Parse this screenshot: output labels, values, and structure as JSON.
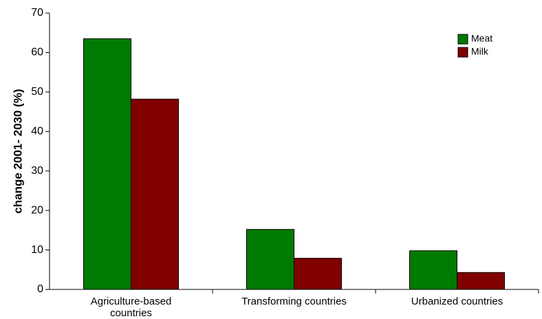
{
  "chart_data": {
    "type": "bar",
    "title": "",
    "xlabel": "",
    "ylabel": "change 2001- 2030 (%)",
    "ylim": [
      0,
      70
    ],
    "yticks": [
      0,
      10,
      20,
      30,
      40,
      50,
      60,
      70
    ],
    "grid": false,
    "legend_position": "top-right",
    "categories": [
      [
        "Agriculture-based",
        "countries"
      ],
      [
        "Transforming countries"
      ],
      [
        "Urbanized countries"
      ]
    ],
    "series": [
      {
        "name": "Meat",
        "color": "#007a00",
        "values": [
          63.5,
          15.2,
          9.8
        ]
      },
      {
        "name": "Milk",
        "color": "#800000",
        "values": [
          48.2,
          7.9,
          4.3
        ]
      }
    ]
  }
}
